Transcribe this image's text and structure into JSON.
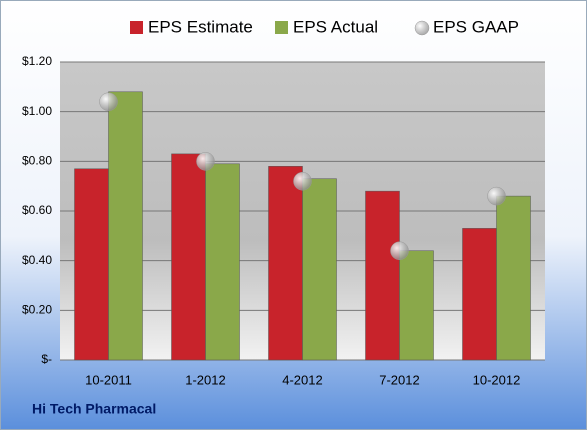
{
  "chart_data": {
    "type": "bar",
    "footer": "Hi Tech Pharmacal",
    "categories": [
      "10-2011",
      "1-2012",
      "4-2012",
      "7-2012",
      "10-2012"
    ],
    "series": [
      {
        "name": "EPS Estimate",
        "type": "bar",
        "color": "#c8232b",
        "values": [
          0.77,
          0.83,
          0.78,
          0.68,
          0.53
        ]
      },
      {
        "name": "EPS Actual",
        "type": "bar",
        "color": "#8aa84a",
        "values": [
          1.08,
          0.79,
          0.73,
          0.44,
          0.66
        ]
      },
      {
        "name": "EPS GAAP",
        "type": "scatter",
        "color": "#a9a9a9",
        "values": [
          1.04,
          0.8,
          0.72,
          0.44,
          0.66
        ]
      }
    ],
    "ylim": [
      0,
      1.2
    ],
    "yticks": [
      {
        "value": 0,
        "label": "$-"
      },
      {
        "value": 0.2,
        "label": "$0.20"
      },
      {
        "value": 0.4,
        "label": "$0.40"
      },
      {
        "value": 0.6,
        "label": "$0.60"
      },
      {
        "value": 0.8,
        "label": "$0.80"
      },
      {
        "value": 1.0,
        "label": "$1.00"
      },
      {
        "value": 1.2,
        "label": "$1.20"
      }
    ],
    "grid": true
  }
}
